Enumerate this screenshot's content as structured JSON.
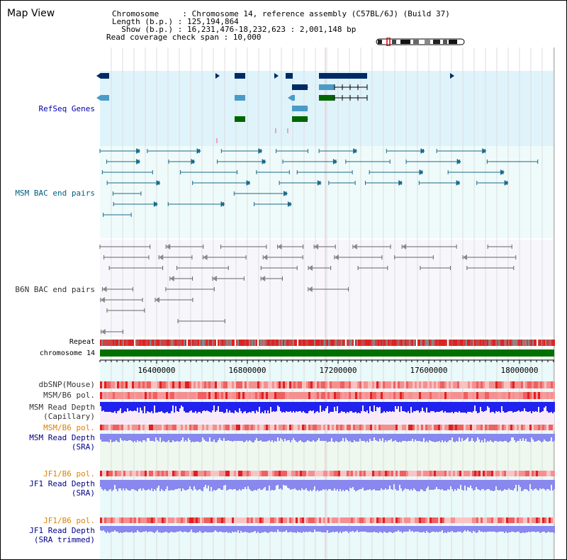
{
  "header": {
    "title": "Map View",
    "chromosome_label": "Chromosome     : Chromosome 14, reference assembly (C57BL/6J) (Build 37)",
    "length_label": "Length (b.p.) : 125,194,864",
    "show_label": "  Show (b.p.) : 16,231,476-18,232,623 : 2,001,148 bp",
    "coverage_label": "Read coverage check span : 10,000"
  },
  "tracks": {
    "refseq": "RefSeq Genes",
    "msm_bac": "MSM BAC end pairs",
    "b6n_bac": "B6N BAC end pairs",
    "repeat": "Repeat",
    "chromosome": "chromosome 14",
    "dbsnp": "dbSNP(Mouse)",
    "msm_b6_pol": "MSM/B6 pol.",
    "msm_read_cap_1": "MSM Read Depth",
    "msm_read_cap_2": "(Capillary)",
    "msm_b6_pol2": "MSM/B6 pol.",
    "msm_read_sra_1": "MSM Read Depth",
    "msm_read_sra_2": "(SRA)",
    "jf1_b6_pol": "JF1/B6 pol.",
    "jf1_read_sra_1": "JF1 Read Depth",
    "jf1_read_sra_2": "(SRA)",
    "jf1_b6_pol2": "JF1/B6 pol.",
    "jf1_read_trim_1": "JF1 Read Depth",
    "jf1_read_trim_2": "(SRA trimmed)"
  },
  "axis": {
    "ticks": [
      "16400000",
      "16800000",
      "17200000",
      "17600000",
      "18000000"
    ]
  },
  "colors": {
    "refseq_bg": "#dff3fb",
    "bac_bg": "#effbfb",
    "gene_dark": "#002a66",
    "gene_mid": "#4a9bc6",
    "gene_green": "#006600",
    "msm_pair": "#1a6a8a",
    "b6n_pair": "#666666",
    "chrom_bar": "#007000",
    "read_cap": "#2222ee",
    "read_sra": "#8888ee"
  }
}
